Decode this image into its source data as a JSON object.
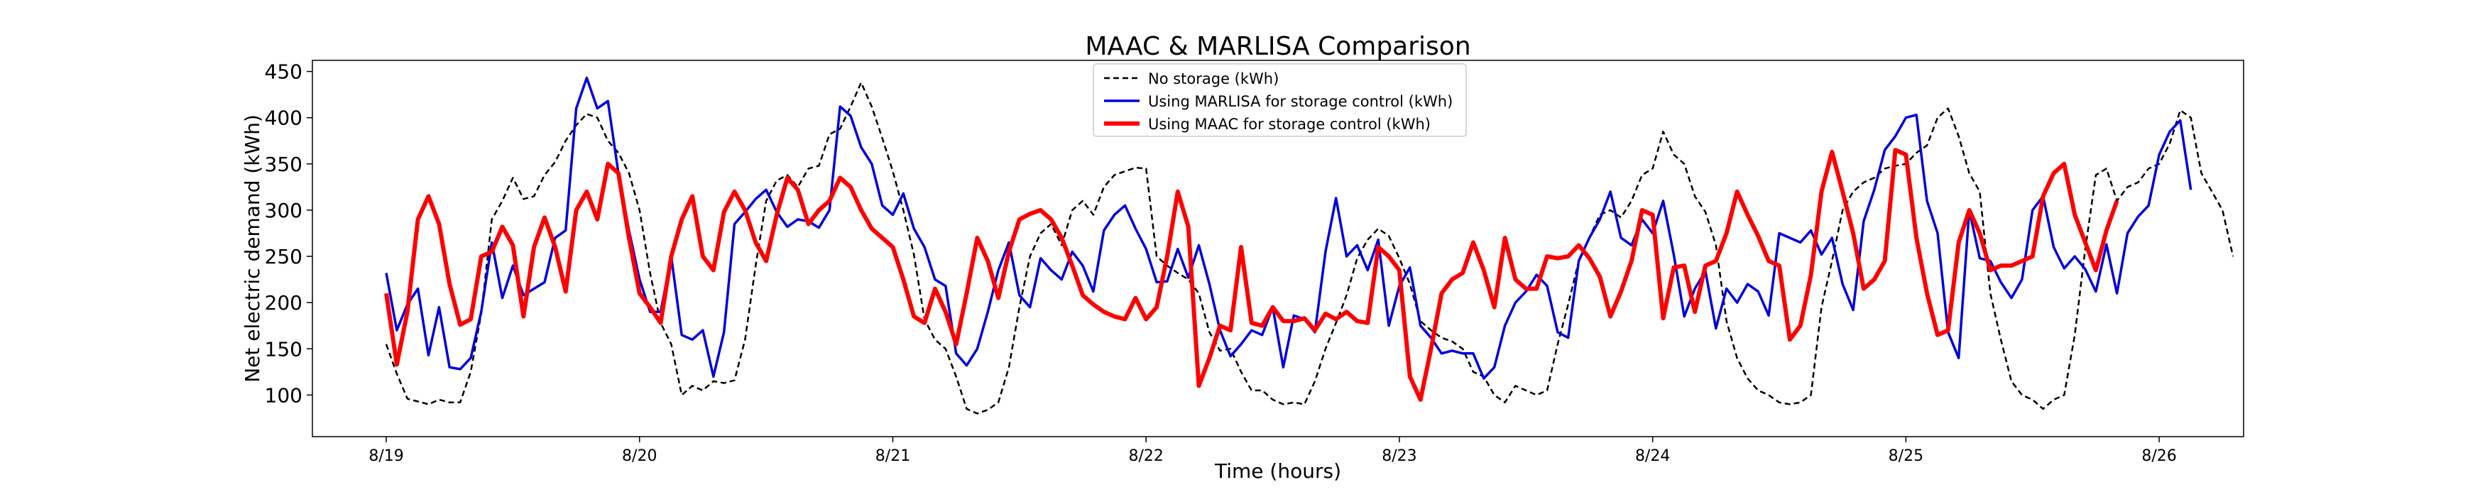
{
  "chart_data": {
    "type": "line",
    "title": "MAAC & MARLISA Comparison",
    "xlabel": "Time (hours)",
    "ylabel": "Net electric demand (kWh)",
    "x_tick_labels": [
      "8/19",
      "8/20",
      "8/21",
      "8/22",
      "8/23",
      "8/24",
      "8/25",
      "8/26"
    ],
    "y_ticks": [
      100,
      150,
      200,
      250,
      300,
      350,
      400,
      450
    ],
    "ylim": [
      55,
      462
    ],
    "x_range_hours": [
      -7,
      176
    ],
    "hours_per_day": 24,
    "grid": false,
    "legend_position": "upper-center",
    "series": [
      {
        "name": "No storage (kWh)",
        "color": "#000000",
        "style": "dashed",
        "values": [
          155,
          123,
          96,
          93,
          90,
          95,
          92,
          92,
          125,
          188,
          290,
          310,
          335,
          312,
          315,
          338,
          352,
          375,
          392,
          404,
          400,
          375,
          362,
          340,
          300,
          232,
          178,
          155,
          100,
          110,
          105,
          115,
          113,
          116,
          160,
          240,
          310,
          332,
          338,
          325,
          345,
          348,
          382,
          388,
          412,
          438,
          412,
          378,
          342,
          300,
          252,
          182,
          160,
          150,
          120,
          85,
          80,
          84,
          92,
          130,
          195,
          250,
          275,
          285,
          262,
          300,
          310,
          295,
          325,
          338,
          342,
          346,
          345,
          250,
          240,
          232,
          225,
          210,
          168,
          148,
          150,
          125,
          105,
          105,
          95,
          90,
          92,
          90,
          115,
          150,
          178,
          208,
          248,
          268,
          280,
          272,
          248,
          220,
          180,
          170,
          162,
          158,
          150,
          125,
          120,
          100,
          92,
          110,
          105,
          100,
          105,
          155,
          198,
          245,
          270,
          295,
          300,
          292,
          310,
          338,
          345,
          385,
          360,
          350,
          315,
          298,
          262,
          180,
          140,
          118,
          105,
          100,
          92,
          90,
          92,
          100,
          195,
          245,
          300,
          320,
          330,
          335,
          345,
          348,
          350,
          362,
          370,
          400,
          410,
          380,
          340,
          320,
          210,
          160,
          115,
          100,
          95,
          85,
          95,
          100,
          165,
          258,
          338,
          345,
          310,
          325,
          330,
          345,
          350,
          372,
          408,
          400,
          340,
          320,
          300,
          250
        ],
        "x_start": 0
      },
      {
        "name": "Using MARLISA for storage control (kWh)",
        "color": "#0000dd",
        "style": "solid",
        "values": [
          232,
          170,
          198,
          215,
          143,
          195,
          130,
          128,
          140,
          190,
          265,
          205,
          240,
          208,
          215,
          222,
          270,
          278,
          410,
          443,
          410,
          418,
          340,
          278,
          225,
          190,
          190,
          250,
          165,
          160,
          170,
          120,
          168,
          285,
          298,
          312,
          322,
          298,
          282,
          290,
          288,
          281,
          300,
          412,
          402,
          368,
          350,
          305,
          295,
          318,
          280,
          260,
          225,
          218,
          145,
          132,
          150,
          190,
          235,
          265,
          208,
          195,
          248,
          235,
          225,
          255,
          240,
          212,
          278,
          295,
          305,
          280,
          258,
          222,
          223,
          258,
          227,
          262,
          220,
          170,
          142,
          155,
          170,
          165,
          195,
          130,
          186,
          182,
          168,
          255,
          313,
          250,
          262,
          235,
          268,
          175,
          218,
          238,
          175,
          162,
          145,
          148,
          145,
          145,
          118,
          130,
          175,
          200,
          212,
          230,
          218,
          168,
          162,
          245,
          270,
          290,
          320,
          270,
          262,
          290,
          275,
          310,
          252,
          185,
          215,
          234,
          172,
          215,
          200,
          220,
          212,
          186,
          275,
          270,
          265,
          278,
          252,
          270,
          220,
          192,
          288,
          322,
          365,
          380,
          400,
          403,
          310,
          275,
          168,
          140,
          300,
          248,
          245,
          222,
          205,
          225,
          300,
          315,
          260,
          237,
          250,
          236,
          212,
          263,
          210,
          275,
          293,
          305,
          360,
          385,
          397,
          322
        ],
        "x_start": 0
      },
      {
        "name": "Using MAAC for storage control (kWh)",
        "color": "#ff0000",
        "style": "solid-thick",
        "values": [
          210,
          133,
          190,
          290,
          315,
          285,
          220,
          176,
          182,
          250,
          255,
          282,
          262,
          185,
          260,
          292,
          260,
          212,
          300,
          320,
          290,
          350,
          340,
          270,
          210,
          195,
          178,
          250,
          290,
          315,
          250,
          235,
          298,
          320,
          300,
          265,
          245,
          295,
          335,
          322,
          285,
          300,
          310,
          335,
          325,
          300,
          280,
          270,
          260,
          225,
          185,
          178,
          215,
          190,
          155,
          210,
          270,
          245,
          205,
          255,
          290,
          296,
          300,
          290,
          270,
          240,
          208,
          198,
          190,
          185,
          182,
          205,
          182,
          195,
          250,
          320,
          282,
          110,
          140,
          175,
          170,
          260,
          178,
          175,
          195,
          180,
          180,
          183,
          170,
          188,
          182,
          190,
          180,
          178,
          260,
          250,
          235,
          120,
          95,
          150,
          210,
          225,
          232,
          265,
          235,
          195,
          270,
          225,
          215,
          215,
          250,
          248,
          250,
          262,
          248,
          228,
          185,
          212,
          245,
          300,
          295,
          183,
          238,
          240,
          190,
          240,
          245,
          275,
          320,
          295,
          272,
          245,
          240,
          160,
          175,
          230,
          320,
          363,
          320,
          275,
          215,
          225,
          245,
          365,
          360,
          270,
          210,
          165,
          170,
          265,
          300,
          275,
          235,
          240,
          240,
          245,
          250,
          315,
          340,
          350,
          295,
          265,
          235,
          278,
          310
        ],
        "x_start": 0
      }
    ]
  }
}
